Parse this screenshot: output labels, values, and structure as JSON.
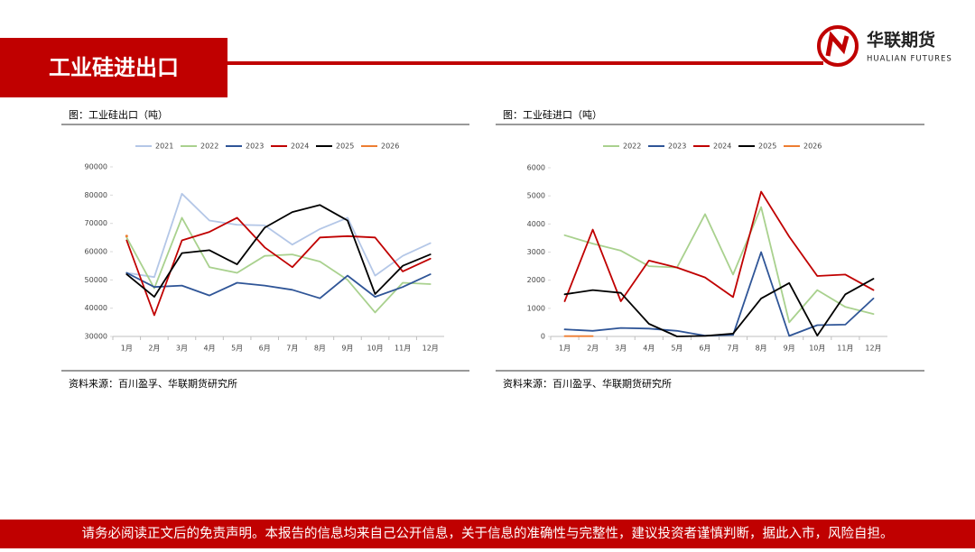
{
  "header": {
    "title": "工业硅进出口",
    "brand": "华联期货",
    "brand_en": "HUALIAN FUTURES"
  },
  "footer": {
    "disclaimer": "请务必阅读正文后的免责声明。本报告的信息均来自己公开信息，关于信息的准确性与完整性，建议投资者谨慎判断，据此入市，风险自担。"
  },
  "chart_data": [
    {
      "type": "line",
      "title": "图：工业硅出口（吨）",
      "source": "资料来源：百川盈孚、华联期货研究所",
      "categories": [
        "1月",
        "2月",
        "3月",
        "4月",
        "5月",
        "6月",
        "7月",
        "8月",
        "9月",
        "10月",
        "11月",
        "12月"
      ],
      "ylim": [
        30000,
        90000
      ],
      "yticks": [
        30000,
        40000,
        50000,
        60000,
        70000,
        80000,
        90000
      ],
      "series": [
        {
          "name": "2021",
          "color": "#b4c7e7",
          "values": [
            52500,
            51000,
            80500,
            71000,
            69500,
            69300,
            62500,
            68000,
            72000,
            51500,
            58500,
            63000
          ]
        },
        {
          "name": "2022",
          "color": "#a9d18e",
          "values": [
            65000,
            47000,
            72000,
            54500,
            52500,
            58500,
            59000,
            56500,
            50000,
            38500,
            49000,
            48500
          ]
        },
        {
          "name": "2023",
          "color": "#2f5597",
          "values": [
            52500,
            47500,
            48000,
            44500,
            49000,
            48000,
            46500,
            43500,
            51500,
            44000,
            47500,
            52000
          ]
        },
        {
          "name": "2024",
          "color": "#c00000",
          "values": [
            64000,
            37500,
            64000,
            67000,
            72000,
            61500,
            54500,
            65000,
            65500,
            65000,
            53000,
            57500
          ]
        },
        {
          "name": "2025",
          "color": "#000000",
          "values": [
            52000,
            44000,
            59500,
            60500,
            55500,
            68500,
            74000,
            76500,
            71000,
            45000,
            55000,
            59000
          ]
        },
        {
          "name": "2026",
          "color": "#ed7d31",
          "values": [
            65500,
            null,
            null,
            null,
            null,
            null,
            null,
            null,
            null,
            null,
            null,
            null
          ]
        }
      ]
    },
    {
      "type": "line",
      "title": "图：工业硅进口（吨）",
      "source": "资料来源：百川盈孚、华联期货研究所",
      "categories": [
        "1月",
        "2月",
        "3月",
        "4月",
        "5月",
        "6月",
        "7月",
        "8月",
        "9月",
        "10月",
        "11月",
        "12月"
      ],
      "ylim": [
        0,
        6000
      ],
      "yticks": [
        0,
        1000,
        2000,
        3000,
        4000,
        5000,
        6000
      ],
      "series": [
        {
          "name": "2022",
          "color": "#a9d18e",
          "values": [
            3600,
            3300,
            3050,
            2500,
            2450,
            4350,
            2200,
            4600,
            500,
            1650,
            1050,
            800
          ]
        },
        {
          "name": "2023",
          "color": "#2f5597",
          "values": [
            250,
            200,
            300,
            280,
            200,
            30,
            50,
            3000,
            20,
            400,
            420,
            1350
          ]
        },
        {
          "name": "2024",
          "color": "#c00000",
          "values": [
            1250,
            3800,
            1250,
            2700,
            2450,
            2100,
            1400,
            5150,
            3550,
            2150,
            2200,
            1650
          ]
        },
        {
          "name": "2025",
          "color": "#000000",
          "values": [
            1500,
            1650,
            1550,
            450,
            0,
            20,
            100,
            1350,
            1900,
            30,
            1500,
            2050
          ]
        },
        {
          "name": "2026",
          "color": "#ed7d31",
          "values": [
            10,
            10,
            null,
            null,
            null,
            null,
            null,
            null,
            null,
            null,
            null,
            null
          ]
        }
      ]
    }
  ]
}
